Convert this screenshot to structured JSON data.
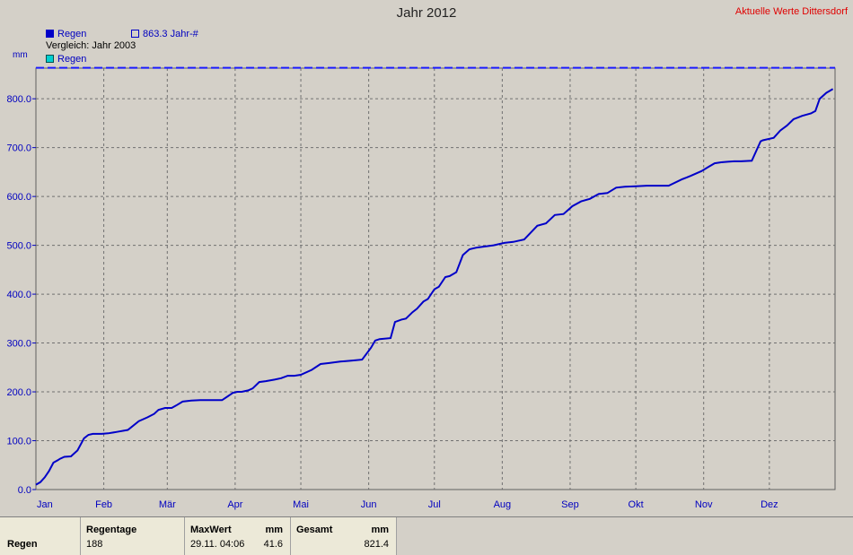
{
  "header": {
    "title": "Jahr 2012",
    "station": "Aktuelle Werte  Dittersdorf"
  },
  "legend": {
    "series_label": "Regen",
    "mean_label": "863.3 Jahr-#",
    "compare_label": "Vergleich: Jahr 2003",
    "compare_series_label": "Regen"
  },
  "colors": {
    "series": "#0000c8",
    "mean_line": "#1a1aff",
    "compare": "#00d0d0",
    "station": "#e00000"
  },
  "chart_data": {
    "type": "line",
    "title": "Jahr 2012",
    "ylabel": "mm",
    "xlabel": "",
    "ylim": [
      0,
      870
    ],
    "y_ticks": [
      "0.0",
      "100.0",
      "200.0",
      "300.0",
      "400.0",
      "500.0",
      "600.0",
      "700.0",
      "800.0"
    ],
    "x_ticks": [
      "Jan",
      "Feb",
      "Mär",
      "Apr",
      "Mai",
      "Jun",
      "Jul",
      "Aug",
      "Sep",
      "Okt",
      "Nov",
      "Dez"
    ],
    "grid": true,
    "reference_line": {
      "name": "863.3 Jahr-#",
      "value": 863.3
    },
    "series": [
      {
        "name": "Regen",
        "x_day_of_year": [
          1,
          3,
          5,
          7,
          9,
          11,
          12,
          14,
          17,
          20,
          23,
          25,
          27,
          29,
          31,
          34,
          38,
          43,
          48,
          52,
          55,
          57,
          60,
          63,
          65,
          68,
          72,
          76,
          79,
          82,
          86,
          91,
          93,
          95,
          98,
          100,
          103,
          106,
          110,
          113,
          116,
          119,
          122,
          127,
          131,
          135,
          140,
          145,
          150,
          154,
          156,
          158,
          163,
          165,
          168,
          170,
          173,
          175,
          178,
          180,
          183,
          185,
          188,
          190,
          193,
          196,
          199,
          202,
          205,
          210,
          215,
          219,
          224,
          230,
          234,
          238,
          242,
          246,
          250,
          254,
          258,
          262,
          266,
          270,
          275,
          280,
          285,
          290,
          296,
          300,
          305,
          308,
          311,
          314,
          317,
          320,
          323,
          328,
          332,
          333,
          338,
          341,
          344,
          347,
          351,
          355,
          357,
          359,
          362,
          365
        ],
        "values": [
          10,
          15,
          25,
          38,
          55,
          60,
          63,
          67,
          68,
          80,
          105,
          112,
          114,
          114,
          114,
          115,
          118,
          122,
          140,
          148,
          155,
          163,
          167,
          167,
          172,
          180,
          182,
          183,
          183,
          183,
          183,
          198,
          200,
          200,
          203,
          207,
          220,
          222,
          225,
          228,
          233,
          233,
          235,
          245,
          257,
          259,
          262,
          264,
          266,
          290,
          305,
          308,
          310,
          343,
          348,
          350,
          363,
          370,
          385,
          390,
          410,
          415,
          435,
          437,
          445,
          480,
          492,
          495,
          497,
          500,
          505,
          507,
          512,
          540,
          545,
          562,
          564,
          580,
          590,
          595,
          605,
          607,
          618,
          620,
          621,
          622,
          622,
          622,
          635,
          642,
          652,
          660,
          668,
          670,
          671,
          672,
          672,
          673,
          713,
          715,
          720,
          735,
          745,
          758,
          765,
          770,
          775,
          800,
          812,
          820
        ]
      }
    ]
  },
  "footer": {
    "row_label": "Regen",
    "regentage_header": "Regentage",
    "regentage_value": "188",
    "maxwert_header": "MaxWert",
    "maxwert_unit": "mm",
    "maxwert_date": "29.11.  04:06",
    "maxwert_value": "41.6",
    "gesamt_header": "Gesamt",
    "gesamt_unit": "mm",
    "gesamt_value": "821.4"
  }
}
